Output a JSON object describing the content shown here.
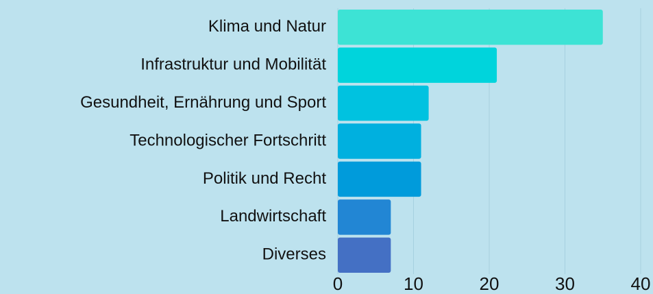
{
  "chart_data": {
    "type": "barh",
    "categories": [
      "Klima und Natur",
      "Infrastruktur und Mobilität",
      "Gesundheit, Ernährung und Sport",
      "Technologischer Fortschritt",
      "Politik und Recht",
      "Landwirtschaft",
      "Diverses"
    ],
    "values": [
      35,
      21,
      12,
      11,
      11,
      7,
      7
    ],
    "colors": [
      "#3de3d5",
      "#00d4dc",
      "#00c2e0",
      "#00b0df",
      "#009bdb",
      "#2286d4",
      "#4470c4"
    ],
    "xlim": [
      0,
      40
    ],
    "xticks": [
      0,
      10,
      20,
      30,
      40
    ],
    "grid": true
  }
}
